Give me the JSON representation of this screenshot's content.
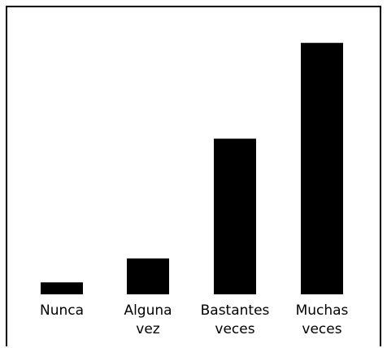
{
  "chart_data": {
    "type": "bar",
    "categories": [
      [
        "Nunca"
      ],
      [
        "Alguna",
        "vez"
      ],
      [
        "Bastantes",
        "veces"
      ],
      [
        "Muchas",
        "veces"
      ]
    ],
    "values": [
      3,
      9,
      39,
      63
    ],
    "ylim": [
      0,
      66
    ],
    "grid": false,
    "legend": "none",
    "colors": {
      "bar": "#000000",
      "frame": "#000000",
      "background": "#ffffff"
    }
  }
}
